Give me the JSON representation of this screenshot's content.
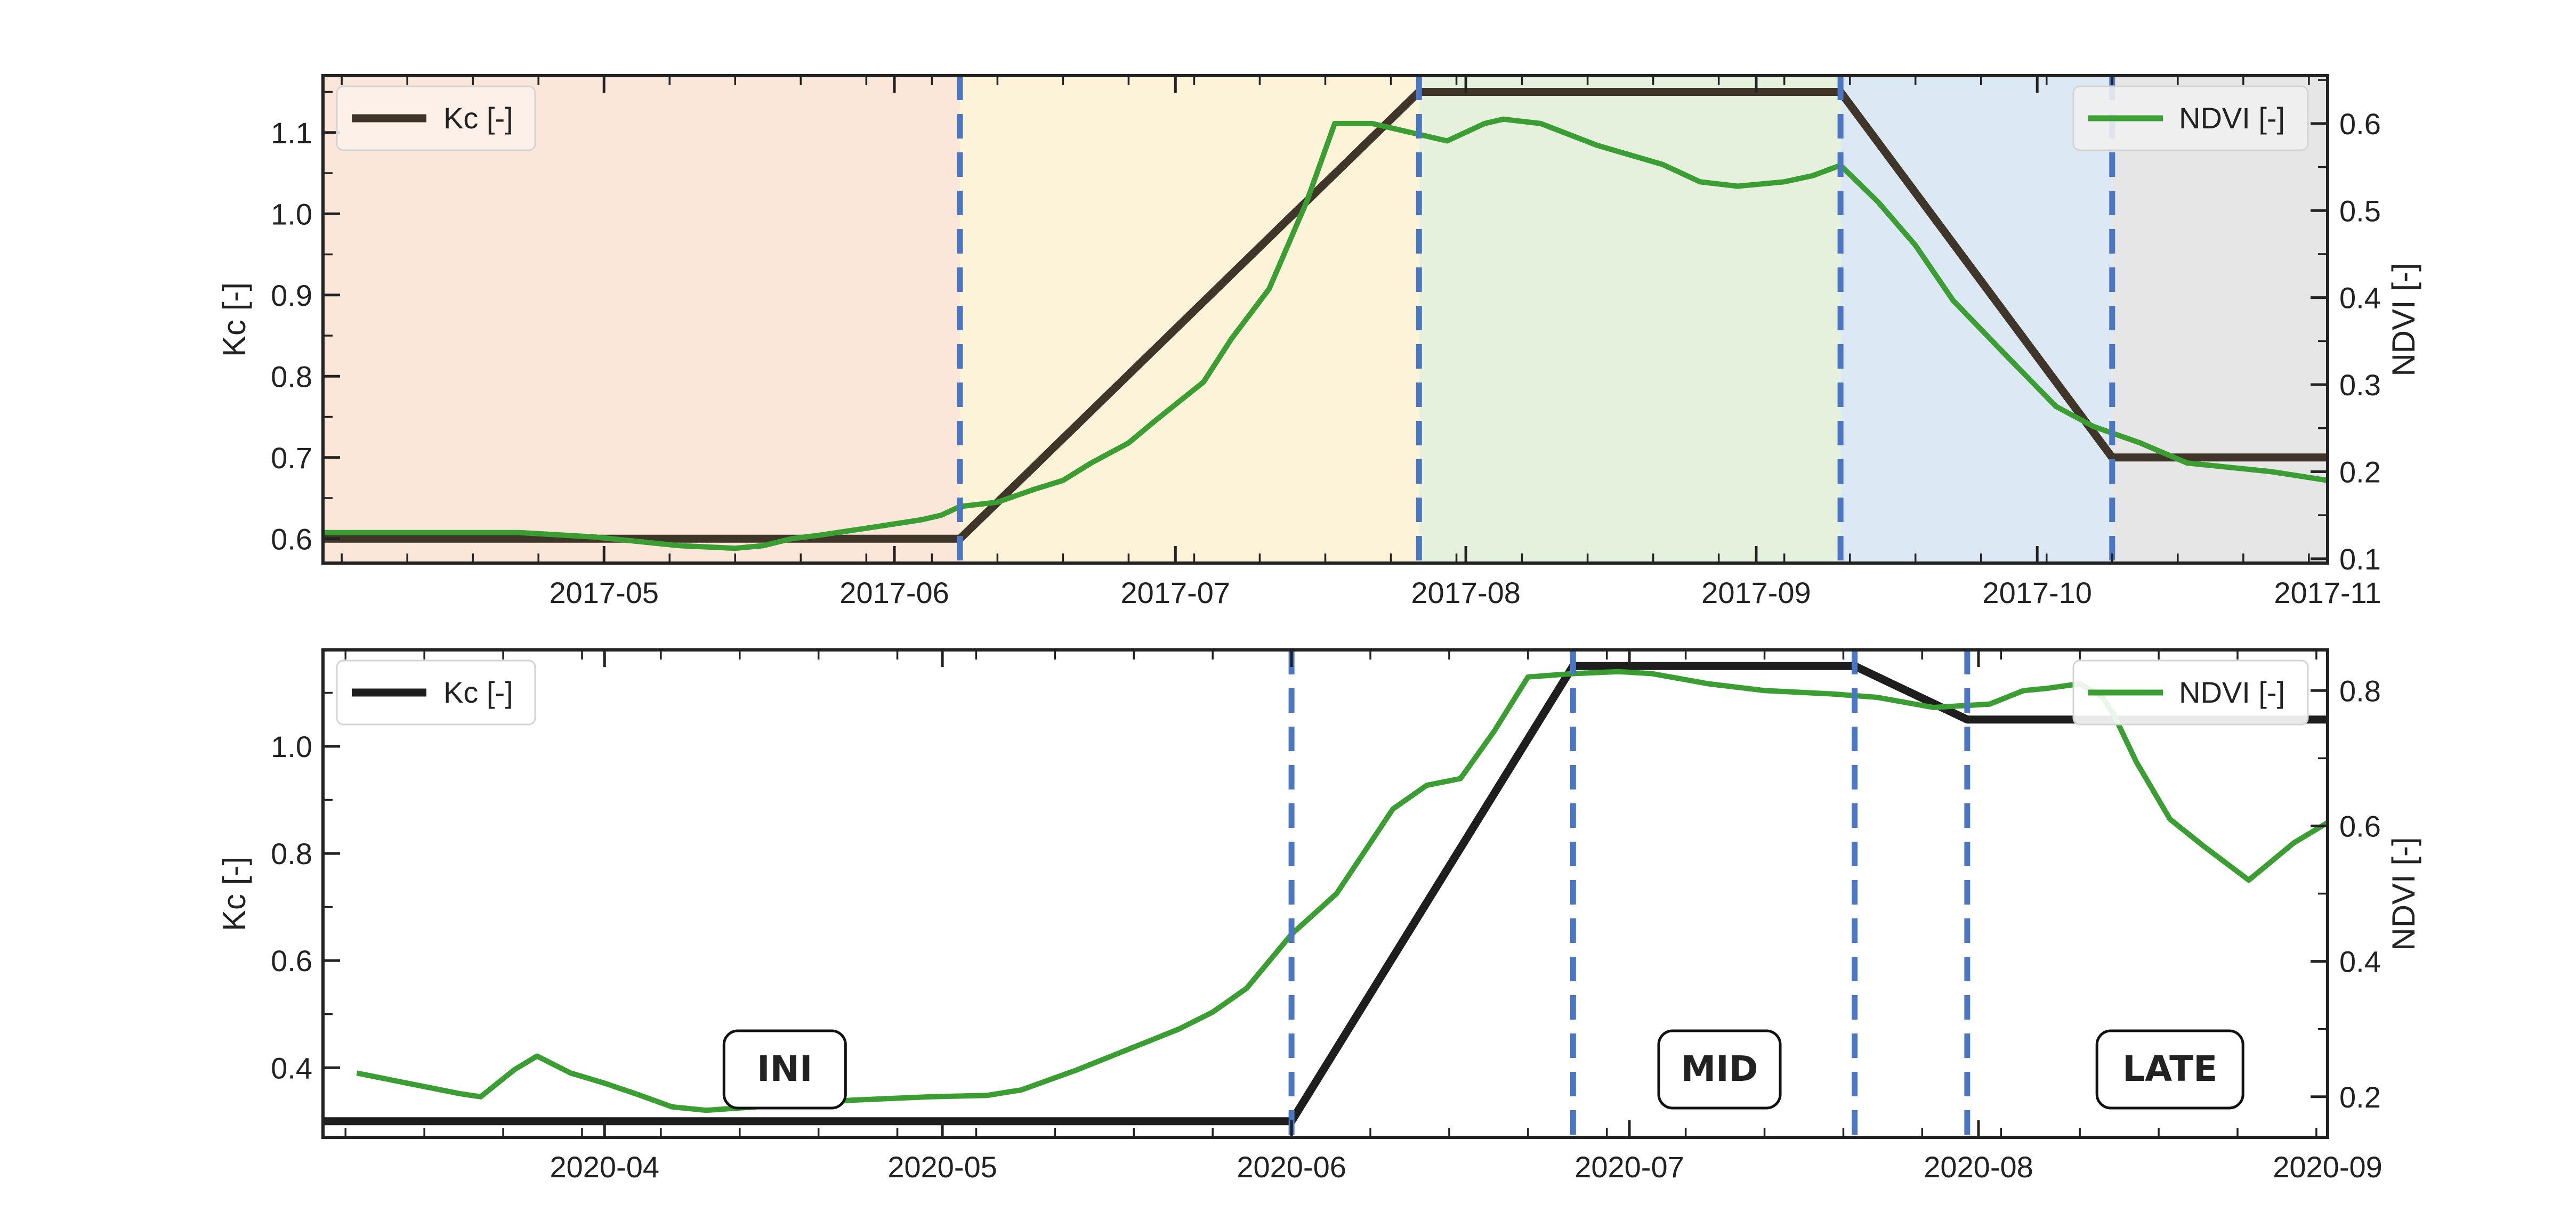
{
  "chart_data": [
    {
      "type": "line",
      "title": "",
      "xlabel": "",
      "ylabel": "Kc [-]",
      "y2label": "NDVI [-]",
      "xlim": [
        "2017-04-01",
        "2017-11-01"
      ],
      "ylim": [
        0.57,
        1.17
      ],
      "y2lim": [
        0.095,
        0.655
      ],
      "xticks": [
        {
          "date": "2017-05-01",
          "label": "2017-05"
        },
        {
          "date": "2017-06-01",
          "label": "2017-06"
        },
        {
          "date": "2017-07-01",
          "label": "2017-07"
        },
        {
          "date": "2017-08-01",
          "label": "2017-08"
        },
        {
          "date": "2017-09-01",
          "label": "2017-09"
        },
        {
          "date": "2017-10-01",
          "label": "2017-10"
        },
        {
          "date": "2017-11-01",
          "label": "2017-11"
        }
      ],
      "yticks": [
        0.6,
        0.7,
        0.8,
        0.9,
        1.0,
        1.1
      ],
      "ytick_labels": [
        "0.6",
        "0.7",
        "0.8",
        "0.9",
        "1.0",
        "1.1"
      ],
      "y2ticks": [
        0.1,
        0.2,
        0.3,
        0.4,
        0.5,
        0.6
      ],
      "y2tick_labels": [
        "0.1",
        "0.2",
        "0.3",
        "0.4",
        "0.5",
        "0.6"
      ],
      "stage_boundaries": [
        "2017-06-08",
        "2017-07-27",
        "2017-09-10",
        "2017-10-09"
      ],
      "stage_shading": [
        {
          "from": "2017-04-01",
          "to": "2017-06-08",
          "color": "#fbe6da"
        },
        {
          "from": "2017-06-08",
          "to": "2017-07-27",
          "color": "#fdf3d9"
        },
        {
          "from": "2017-07-27",
          "to": "2017-09-10",
          "color": "#e6f1dd"
        },
        {
          "from": "2017-09-10",
          "to": "2017-10-09",
          "color": "#dde8f5"
        },
        {
          "from": "2017-10-09",
          "to": "2017-11-01",
          "color": "#e6e6e6"
        }
      ],
      "series": [
        {
          "name": "Kc [-]",
          "axis": "left",
          "color": "#3f3528",
          "x": [
            "2017-04-01",
            "2017-06-08",
            "2017-07-27",
            "2017-09-10",
            "2017-10-09",
            "2017-11-01"
          ],
          "y": [
            0.6,
            0.6,
            1.15,
            1.15,
            0.7,
            0.7
          ]
        },
        {
          "name": "NDVI [-]",
          "axis": "right",
          "color": "#3a9e32",
          "x": [
            "2017-04-01",
            "2017-04-22",
            "2017-04-30",
            "2017-05-09",
            "2017-05-15",
            "2017-05-18",
            "2017-05-21",
            "2017-05-24",
            "2017-05-29",
            "2017-06-01",
            "2017-06-04",
            "2017-06-06",
            "2017-06-08",
            "2017-06-12",
            "2017-06-16",
            "2017-06-19",
            "2017-06-22",
            "2017-06-26",
            "2017-06-29",
            "2017-07-04",
            "2017-07-07",
            "2017-07-11",
            "2017-07-15",
            "2017-07-18",
            "2017-07-22",
            "2017-07-26",
            "2017-07-30",
            "2017-08-03",
            "2017-08-05",
            "2017-08-09",
            "2017-08-15",
            "2017-08-22",
            "2017-08-26",
            "2017-08-30",
            "2017-09-04",
            "2017-09-07",
            "2017-09-10",
            "2017-09-14",
            "2017-09-18",
            "2017-09-22",
            "2017-09-28",
            "2017-10-03",
            "2017-10-07",
            "2017-10-12",
            "2017-10-17",
            "2017-10-26",
            "2017-11-01"
          ],
          "y": [
            0.13,
            0.13,
            0.125,
            0.115,
            0.112,
            0.115,
            0.123,
            0.127,
            0.135,
            0.14,
            0.145,
            0.15,
            0.16,
            0.165,
            0.18,
            0.19,
            0.21,
            0.233,
            0.26,
            0.303,
            0.353,
            0.41,
            0.51,
            0.6,
            0.6,
            0.59,
            0.58,
            0.6,
            0.605,
            0.6,
            0.575,
            0.553,
            0.533,
            0.528,
            0.533,
            0.54,
            0.552,
            0.51,
            0.46,
            0.397,
            0.33,
            0.275,
            0.252,
            0.233,
            0.21,
            0.2,
            0.19
          ]
        }
      ],
      "legend_left": {
        "label": "Kc [-]",
        "placement": "upper-left"
      },
      "legend_right": {
        "label": "NDVI [-]",
        "placement": "upper-right"
      }
    },
    {
      "type": "line",
      "title": "",
      "xlabel": "",
      "ylabel": "Kc [-]",
      "y2label": "NDVI [-]",
      "xlim": [
        "2020-03-07",
        "2020-09-01"
      ],
      "ylim": [
        0.27,
        1.18
      ],
      "y2lim": [
        0.14,
        0.86
      ],
      "xticks": [
        {
          "date": "2020-04-01",
          "label": "2020-04"
        },
        {
          "date": "2020-05-01",
          "label": "2020-05"
        },
        {
          "date": "2020-06-01",
          "label": "2020-06"
        },
        {
          "date": "2020-07-01",
          "label": "2020-07"
        },
        {
          "date": "2020-08-01",
          "label": "2020-08"
        },
        {
          "date": "2020-09-01",
          "label": "2020-09"
        }
      ],
      "yticks": [
        0.4,
        0.6,
        0.8,
        1.0
      ],
      "ytick_labels": [
        "0.4",
        "0.6",
        "0.8",
        "1.0"
      ],
      "y2ticks": [
        0.2,
        0.4,
        0.6,
        0.8
      ],
      "y2tick_labels": [
        "0.2",
        "0.4",
        "0.6",
        "0.8"
      ],
      "stage_boundaries": [
        "2020-06-01",
        "2020-06-26",
        "2020-07-21",
        "2020-07-31"
      ],
      "stage_labels": [
        {
          "text": "INI",
          "x": "2020-04-17"
        },
        {
          "text": "MID",
          "x": "2020-07-09"
        },
        {
          "text": "LATE",
          "x": "2020-08-18"
        }
      ],
      "series": [
        {
          "name": "Kc [-]",
          "axis": "left",
          "color": "#1e1e1e",
          "x": [
            "2020-03-07",
            "2020-06-01",
            "2020-06-26",
            "2020-07-21",
            "2020-07-31",
            "2020-09-01"
          ],
          "y": [
            0.3,
            0.3,
            1.15,
            1.15,
            1.05,
            1.05
          ]
        },
        {
          "name": "NDVI [-]",
          "axis": "right",
          "color": "#3a9e32",
          "x": [
            "2020-03-10",
            "2020-03-13",
            "2020-03-16",
            "2020-03-19",
            "2020-03-21",
            "2020-03-24",
            "2020-03-26",
            "2020-03-29",
            "2020-04-01",
            "2020-04-04",
            "2020-04-07",
            "2020-04-10",
            "2020-04-17",
            "2020-04-23",
            "2020-04-30",
            "2020-05-05",
            "2020-05-08",
            "2020-05-13",
            "2020-05-16",
            "2020-05-19",
            "2020-05-22",
            "2020-05-25",
            "2020-05-28",
            "2020-05-30",
            "2020-06-01",
            "2020-06-05",
            "2020-06-07",
            "2020-06-10",
            "2020-06-13",
            "2020-06-16",
            "2020-06-19",
            "2020-06-22",
            "2020-06-26",
            "2020-06-30",
            "2020-07-03",
            "2020-07-08",
            "2020-07-13",
            "2020-07-19",
            "2020-07-23",
            "2020-07-28",
            "2020-08-02",
            "2020-08-05",
            "2020-08-07",
            "2020-08-10",
            "2020-08-12",
            "2020-08-13",
            "2020-08-15",
            "2020-08-18",
            "2020-08-21",
            "2020-08-25",
            "2020-08-29",
            "2020-09-01"
          ],
          "y": [
            0.235,
            0.225,
            0.215,
            0.205,
            0.2,
            0.24,
            0.26,
            0.235,
            0.22,
            0.203,
            0.185,
            0.18,
            0.188,
            0.195,
            0.2,
            0.202,
            0.21,
            0.24,
            0.26,
            0.28,
            0.3,
            0.325,
            0.36,
            0.4,
            0.44,
            0.5,
            0.55,
            0.625,
            0.66,
            0.67,
            0.74,
            0.82,
            0.825,
            0.828,
            0.825,
            0.81,
            0.8,
            0.795,
            0.79,
            0.775,
            0.78,
            0.8,
            0.803,
            0.81,
            0.79,
            0.765,
            0.695,
            0.61,
            0.57,
            0.52,
            0.575,
            0.605
          ]
        }
      ],
      "legend_left": {
        "label": "Kc [-]",
        "placement": "upper-left"
      },
      "legend_right": {
        "label": "NDVI [-]",
        "placement": "upper-right"
      }
    }
  ]
}
